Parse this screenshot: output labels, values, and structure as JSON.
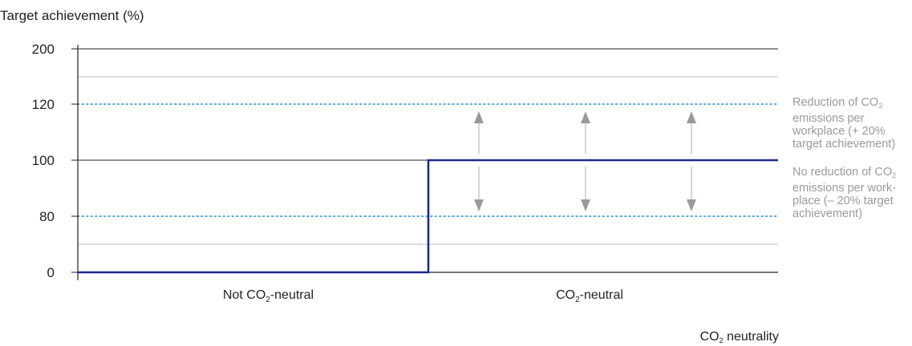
{
  "chart_data": {
    "type": "line",
    "title": "",
    "ylabel": "Target achievement (%)",
    "xlabel": {
      "pre": "CO",
      "sub": "2",
      "post": " neutrality"
    },
    "y_ticks": [
      {
        "label": "200",
        "value": 200
      },
      {
        "label": "120",
        "value": 120
      },
      {
        "label": "100",
        "value": 100
      },
      {
        "label": "80",
        "value": 80
      },
      {
        "label": "0",
        "value": 0
      }
    ],
    "y_scale": "non-linear (labels 0, 80, 100, 120, 200 shown at evenly spaced positions)",
    "categories": [
      {
        "pre": "Not CO",
        "sub": "2",
        "post": "-neutral"
      },
      {
        "pre": "CO",
        "sub": "2",
        "post": "-neutral"
      }
    ],
    "series": [
      {
        "values": [
          0,
          100
        ],
        "color": "#1e2a8c",
        "step": true
      }
    ],
    "reference_lines": [
      {
        "value": 120,
        "style": "dotted",
        "color": "#5aa9e6"
      },
      {
        "value": 80,
        "style": "dotted",
        "color": "#5aa9e6"
      }
    ],
    "range_arrows": {
      "category": "CO2-neutral",
      "from": 80,
      "to": 120,
      "count": 3
    },
    "annotations": [
      {
        "lines": [
          {
            "pre": "Reduction of CO",
            "sub": "2",
            "post": ""
          },
          {
            "pre": "emissions per",
            "sub": "",
            "post": ""
          },
          {
            "pre": "workplace (+ 20%",
            "sub": "",
            "post": ""
          },
          {
            "pre": "target achievement)",
            "sub": "",
            "post": ""
          }
        ]
      },
      {
        "lines": [
          {
            "pre": "No reduction of CO",
            "sub": "2",
            "post": ""
          },
          {
            "pre": "emissions per work-",
            "sub": "",
            "post": ""
          },
          {
            "pre": "place (– 20% target",
            "sub": "",
            "post": ""
          },
          {
            "pre": "achievement)",
            "sub": "",
            "post": ""
          }
        ]
      }
    ],
    "grid": true,
    "colors": {
      "axis": "#222222",
      "grid": "#c8c8c8",
      "arrow": "#9a9a9a",
      "annotation": "#9a9a9a"
    }
  }
}
